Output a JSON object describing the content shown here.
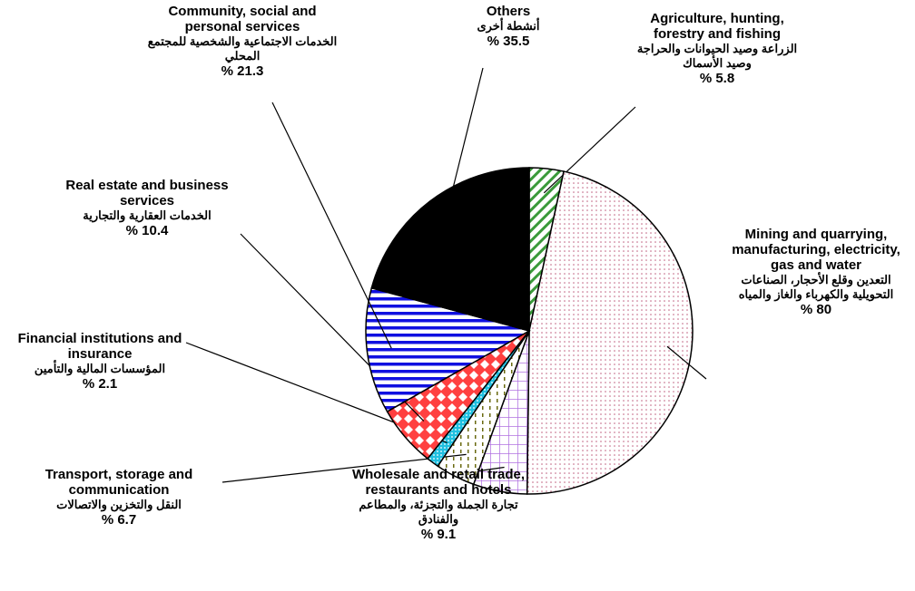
{
  "chart_data": {
    "type": "pie",
    "categories": [
      "Agriculture, hunting, forestry and fishing",
      "Mining and quarrying, manufacturing, electricity, gas and water",
      "Wholesale and retail trade, restaurants and hotels",
      "Transport, storage and communication",
      "Financial institutions and insurance",
      "Real estate and business services",
      "Community, social and personal services",
      "Others"
    ],
    "categories_ar": [
      "الزراعة وصيد الحيوانات والحراجة وصيد الأسماك",
      "التعدين وقلع الأحجار، الصناعات التحويلية والكهرباء والغاز والمياه",
      "تجارة الجملة والتجزئة، والمطاعم والفنادق",
      "النقل والتخزين والاتصالات",
      "المؤسسات المالية والتأمين",
      "الخدمات العقارية والتجارية",
      "الخدمات الاجتماعية والشخصية للمجتمع المحلي",
      "أنشطة أخرى"
    ],
    "values": [
      5.8,
      80,
      9.1,
      6.7,
      2.1,
      10.4,
      21.3,
      35.5
    ],
    "value_labels": [
      "% 5.8",
      "% 80",
      "% 9.1",
      "% 6.7",
      "% 2.1",
      "% 10.4",
      "% 21.3",
      "% 35.5"
    ],
    "colors": [
      "#3a9a3a",
      "#c06080",
      "#b070e0",
      "#6a6a10",
      "#20c0e0",
      "#ff4040",
      "#1010e0",
      "#000000"
    ],
    "patterns": [
      "diagonal",
      "dots",
      "grid",
      "dashes",
      "fine-dots",
      "diamonds",
      "horizontal",
      "solid"
    ]
  }
}
